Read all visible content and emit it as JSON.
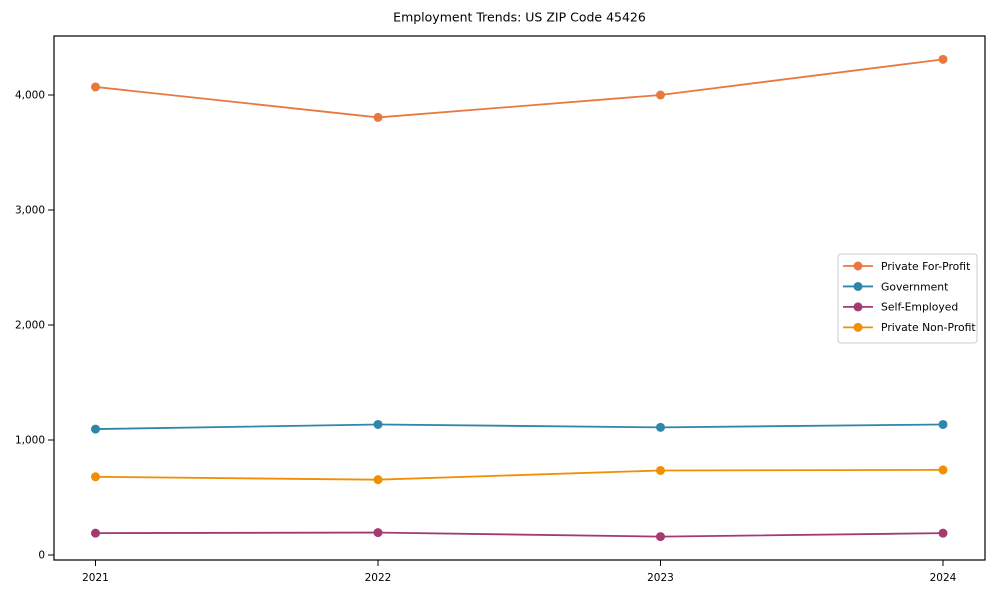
{
  "chart_data": {
    "type": "line",
    "title": "Employment Trends: US ZIP Code 45426",
    "x": [
      "2021",
      "2022",
      "2023",
      "2024"
    ],
    "series": [
      {
        "name": "Private For-Profit",
        "color": "#E8793E",
        "values": [
          4070,
          3805,
          4000,
          4310
        ]
      },
      {
        "name": "Government",
        "color": "#2E86AB",
        "values": [
          1095,
          1135,
          1110,
          1135
        ]
      },
      {
        "name": "Self-Employed",
        "color": "#A23B72",
        "values": [
          190,
          195,
          160,
          190
        ]
      },
      {
        "name": "Private Non-Profit",
        "color": "#F18F01",
        "values": [
          680,
          655,
          735,
          740
        ]
      }
    ],
    "xlabel": "",
    "ylabel": "",
    "yticks": [
      0,
      1000,
      2000,
      3000,
      4000
    ],
    "ytick_labels": [
      "0",
      "1,000",
      "2,000",
      "3,000",
      "4,000"
    ],
    "ylim": [
      -45,
      4515
    ],
    "grid": false,
    "legend_position": "right-center",
    "legend_border_color": "#cccccc",
    "marker": "circle",
    "axis_color": "#000000"
  }
}
